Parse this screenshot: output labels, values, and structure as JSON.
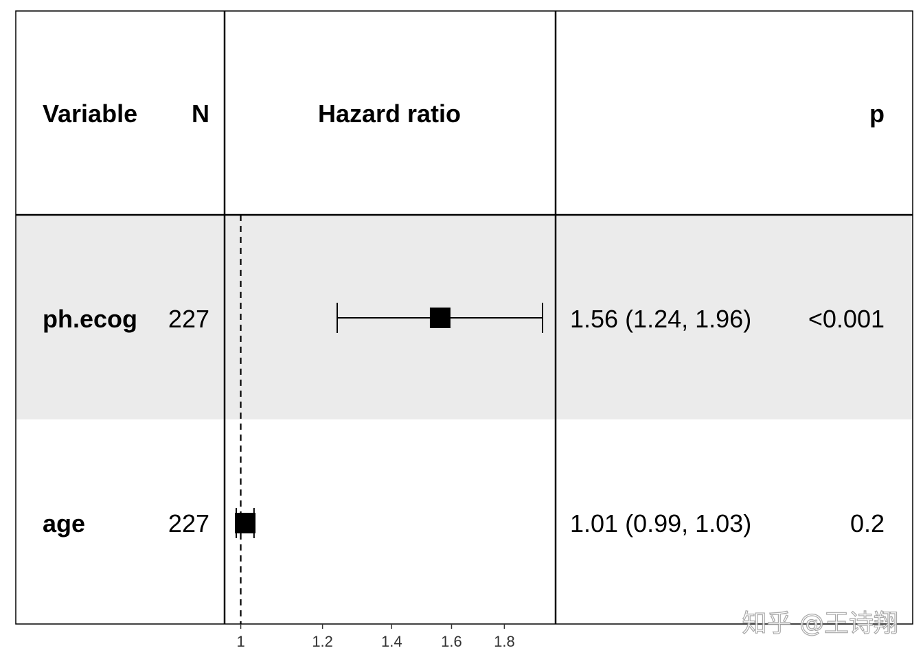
{
  "chart_data": {
    "type": "forest",
    "title": "",
    "columns": {
      "variable": "Variable",
      "n": "N",
      "hazard_ratio": "Hazard ratio",
      "estimate": "",
      "p": "p"
    },
    "rows": [
      {
        "variable": "ph.ecog",
        "n": "227",
        "hr": 1.56,
        "lower": 1.24,
        "upper": 1.96,
        "estimate_text": "1.56 (1.24, 1.96)",
        "p": "<0.001",
        "shaded": true
      },
      {
        "variable": "age",
        "n": "227",
        "hr": 1.01,
        "lower": 0.99,
        "upper": 1.03,
        "estimate_text": "1.01 (0.99, 1.03)",
        "p": "0.2",
        "shaded": false
      }
    ],
    "reference_line": 1,
    "x_ticks": [
      1,
      1.2,
      1.4,
      1.6,
      1.8
    ],
    "x_tick_labels": [
      "1",
      "1.2",
      "1.4",
      "1.6",
      "1.8"
    ],
    "x_scale": "log",
    "xlim": [
      0.99,
      1.96
    ],
    "colors": {
      "row_shade": "#ebebeb",
      "marks": "#000000"
    }
  },
  "watermark": "知乎 @王诗翔"
}
